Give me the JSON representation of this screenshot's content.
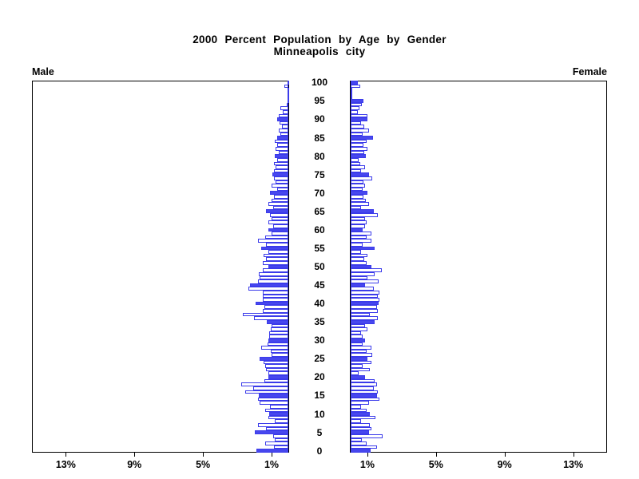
{
  "title": {
    "line1": "2000 Percent Population by Age by Gender",
    "line2": "Minneapolis city"
  },
  "panels": {
    "male_label": "Male",
    "female_label": "Female"
  },
  "chart_data": {
    "type": "bar",
    "subtype": "population-pyramid",
    "title": "2000 Percent Population by Age by Gender",
    "subtitle": "Minneapolis city",
    "age_axis": {
      "min": 0,
      "max": 100,
      "tick_interval": 5,
      "tick_labels": [
        "0",
        "5",
        "10",
        "15",
        "20",
        "25",
        "30",
        "35",
        "40",
        "45",
        "50",
        "55",
        "60",
        "65",
        "70",
        "75",
        "80",
        "85",
        "90",
        "95",
        "100"
      ]
    },
    "percent_axis": {
      "max_percent": 15,
      "male_ticks": [
        {
          "percent": 13,
          "label": "13%"
        },
        {
          "percent": 9,
          "label": "9%"
        },
        {
          "percent": 5,
          "label": "5%"
        },
        {
          "percent": 1,
          "label": "1%"
        }
      ],
      "female_ticks": [
        {
          "percent": 1,
          "label": "1%"
        },
        {
          "percent": 5,
          "label": "5%"
        },
        {
          "percent": 9,
          "label": "9%"
        },
        {
          "percent": 13,
          "label": "13%"
        }
      ]
    },
    "highlight_every_n_years": 5,
    "series": [
      {
        "name": "Male",
        "side": "left",
        "values_percent_by_age": [
          1.86,
          0.85,
          1.35,
          0.81,
          0.88,
          1.97,
          1.3,
          1.77,
          0.78,
          1.16,
          1.1,
          1.35,
          1.07,
          1.66,
          1.77,
          1.72,
          2.51,
          2.05,
          2.74,
          1.4,
          1.15,
          1.16,
          1.3,
          1.35,
          1.43,
          1.69,
          0.96,
          1.04,
          1.58,
          1.2,
          1.15,
          1.12,
          1.1,
          1.04,
          0.96,
          1.24,
          2.0,
          2.67,
          1.5,
          1.38,
          1.89,
          1.47,
          1.47,
          1.5,
          2.33,
          2.23,
          1.77,
          1.66,
          1.72,
          1.5,
          1.16,
          1.5,
          1.3,
          1.43,
          1.16,
          1.58,
          1.3,
          1.77,
          1.35,
          0.96,
          1.16,
          0.88,
          1.16,
          0.96,
          1.07,
          1.3,
          0.88,
          1.16,
          0.96,
          0.84,
          1.07,
          0.65,
          0.96,
          0.73,
          0.84,
          0.93,
          0.84,
          0.73,
          0.84,
          0.65,
          0.81,
          0.57,
          0.73,
          0.65,
          0.78,
          0.65,
          0.45,
          0.57,
          0.39,
          0.5,
          0.65,
          0.54,
          0.34,
          0.45,
          0.08,
          0.06,
          0.04,
          0.03,
          0.02,
          0.22,
          0.05
        ]
      },
      {
        "name": "Female",
        "side": "right",
        "values_percent_by_age": [
          1.16,
          1.53,
          0.91,
          0.67,
          1.88,
          1.07,
          1.22,
          1.13,
          0.6,
          1.44,
          1.13,
          0.91,
          0.6,
          1.07,
          1.69,
          1.55,
          1.6,
          1.33,
          1.53,
          1.41,
          0.82,
          0.48,
          1.13,
          0.71,
          1.22,
          0.98,
          1.28,
          0.91,
          1.22,
          0.71,
          0.82,
          0.71,
          0.6,
          0.98,
          0.82,
          1.38,
          1.6,
          1.13,
          1.6,
          1.53,
          1.64,
          1.69,
          1.6,
          1.69,
          1.33,
          0.82,
          1.64,
          0.98,
          1.38,
          1.8,
          1.22,
          0.91,
          0.79,
          0.98,
          0.6,
          1.41,
          0.71,
          1.22,
          0.95,
          1.22,
          0.71,
          0.82,
          0.95,
          0.82,
          1.57,
          1.33,
          0.6,
          1.07,
          0.87,
          0.76,
          0.98,
          0.7,
          0.84,
          0.76,
          1.26,
          1.07,
          0.6,
          0.82,
          0.56,
          0.45,
          0.87,
          0.79,
          0.98,
          0.76,
          0.91,
          1.3,
          0.71,
          1.07,
          0.79,
          0.6,
          0.98,
          0.98,
          0.4,
          0.51,
          0.64,
          0.76,
          0.1,
          0.03,
          0.06,
          0.54,
          0.4
        ]
      }
    ],
    "colors": {
      "bar_outline": "#3b3bea",
      "bar_fill_highlight": "#4747ee",
      "bar_fill_normal": "#ffffff",
      "axis": "#000000",
      "text": "#000000"
    },
    "legend": "none",
    "grid": false
  }
}
